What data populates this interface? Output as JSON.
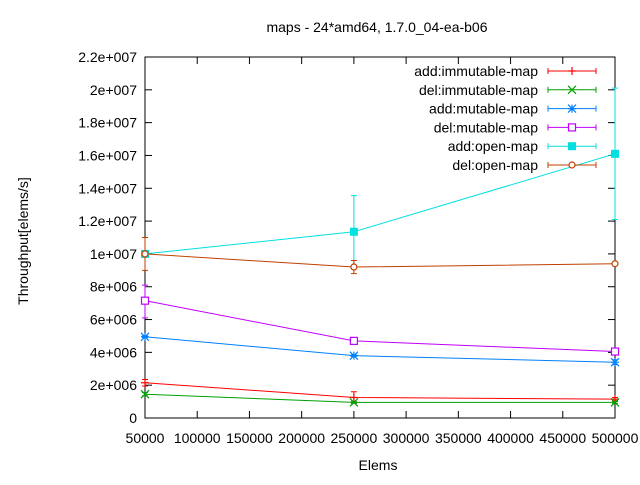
{
  "chart_data": {
    "type": "line",
    "title": "maps - 24*amd64, 1.7.0_04-ea-b06",
    "xlabel": "Elems",
    "ylabel": "Throughput[elems/s]",
    "xlim": [
      50000,
      500000
    ],
    "ylim": [
      0,
      22000000
    ],
    "x_ticks": [
      50000,
      100000,
      150000,
      200000,
      250000,
      300000,
      350000,
      400000,
      450000,
      500000
    ],
    "x_tick_labels": [
      "50000",
      "100000",
      "150000",
      "200000",
      "250000",
      "300000",
      "350000",
      "400000",
      "450000",
      "500000"
    ],
    "y_ticks": [
      0,
      2000000,
      4000000,
      6000000,
      8000000,
      10000000,
      12000000,
      14000000,
      16000000,
      18000000,
      20000000,
      22000000
    ],
    "y_tick_labels": [
      "0",
      "2e+006",
      "4e+006",
      "6e+006",
      "8e+006",
      "1e+007",
      "1.2e+007",
      "1.4e+007",
      "1.6e+007",
      "1.8e+007",
      "2e+007",
      "2.2e+007"
    ],
    "grid": false,
    "legend_position": "top-right",
    "x": [
      50000,
      250000,
      500000
    ],
    "series": [
      {
        "name": "add:immutable-map",
        "color": "#ff0000",
        "marker": "plus",
        "values": [
          2150000,
          1250000,
          1150000
        ],
        "err_low": [
          1950000,
          900000,
          1050000
        ],
        "err_high": [
          2350000,
          1600000,
          1250000
        ]
      },
      {
        "name": "del:immutable-map",
        "color": "#00a000",
        "marker": "cross",
        "values": [
          1450000,
          950000,
          950000
        ],
        "err_low": [
          1350000,
          900000,
          900000
        ],
        "err_high": [
          1550000,
          1000000,
          1000000
        ]
      },
      {
        "name": "add:mutable-map",
        "color": "#0080ff",
        "marker": "star",
        "values": [
          4950000,
          3800000,
          3400000
        ],
        "err_low": [
          4900000,
          3750000,
          3250000
        ],
        "err_high": [
          5000000,
          3850000,
          3550000
        ]
      },
      {
        "name": "del:mutable-map",
        "color": "#c000ff",
        "marker": "open-square",
        "values": [
          7150000,
          4700000,
          4050000
        ],
        "err_low": [
          6100000,
          4650000,
          4000000
        ],
        "err_high": [
          8100000,
          4750000,
          4100000
        ]
      },
      {
        "name": "add:open-map",
        "color": "#00e0e0",
        "marker": "filled-square",
        "values": [
          10000000,
          11350000,
          16100000
        ],
        "err_low": [
          9950000,
          9200000,
          12100000
        ],
        "err_high": [
          10100000,
          13550000,
          20100000
        ]
      },
      {
        "name": "del:open-map",
        "color": "#c04000",
        "marker": "open-circle",
        "values": [
          10000000,
          9200000,
          9400000
        ],
        "err_low": [
          9000000,
          8800000,
          9350000
        ],
        "err_high": [
          11000000,
          9600000,
          9450000
        ]
      }
    ]
  }
}
